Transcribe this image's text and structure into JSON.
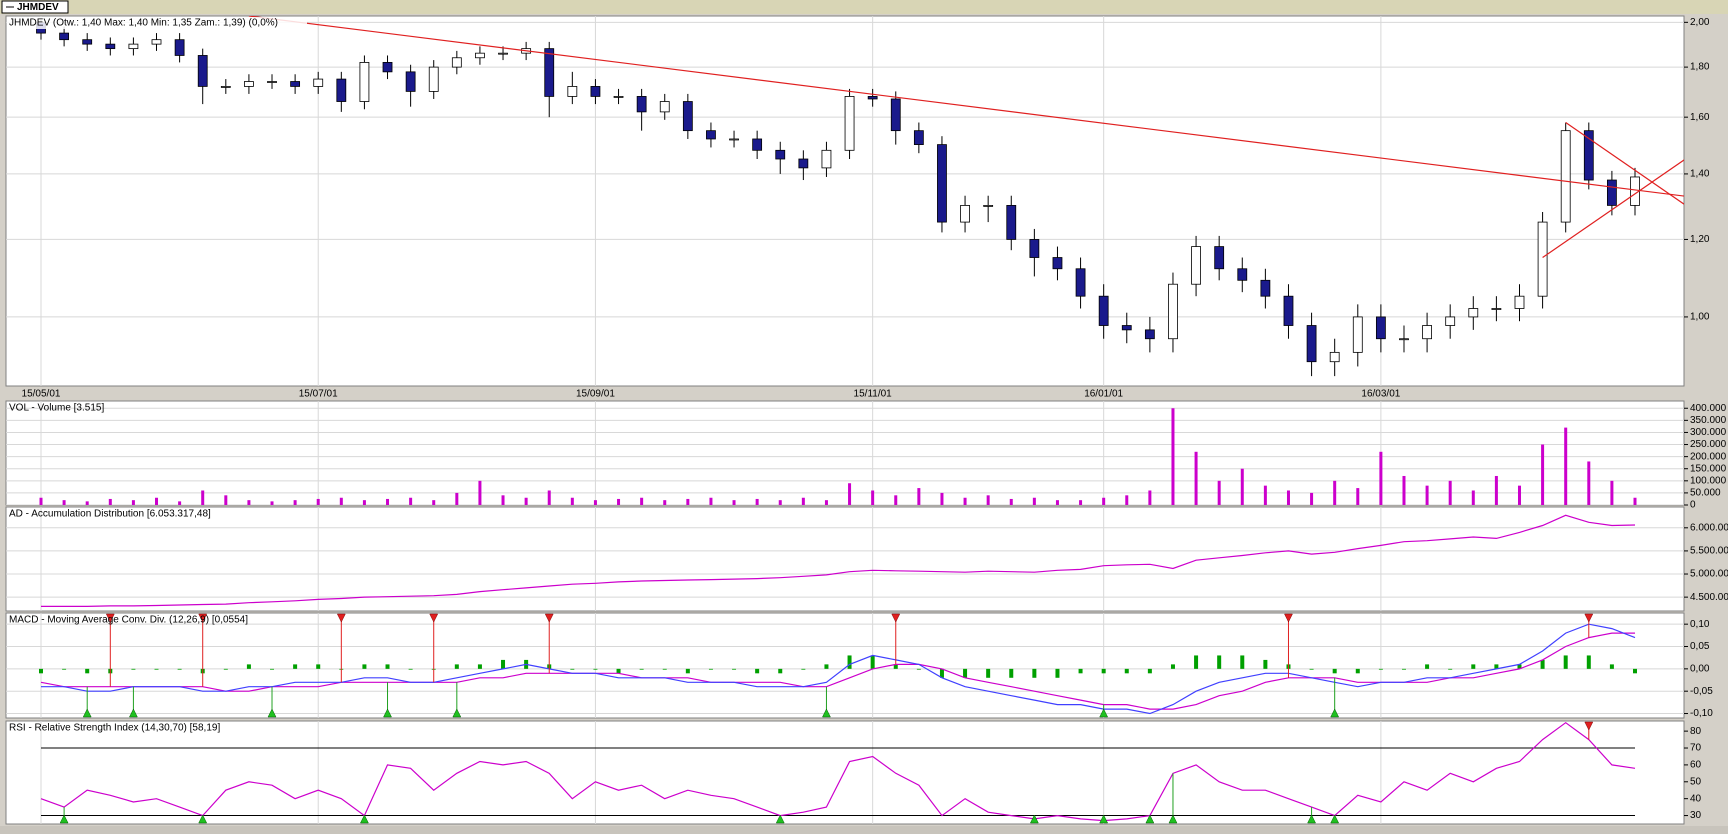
{
  "tab": "JHMDEV",
  "chart_data": [
    {
      "type": "candlestick",
      "title": "JHMDEV (Otw.: 1,40  Max: 1,40  Min: 1,35  Zam.: 1,39) (0,0%)",
      "log_scale": true,
      "grid": true,
      "up_color": "#ffffff",
      "down_color": "#1a1a8c",
      "ylim": [
        0.85,
        2.03
      ],
      "yticks": [
        {
          "value": 1.0,
          "label": "1,00"
        },
        {
          "value": 1.2,
          "label": "1,20"
        },
        {
          "value": 1.4,
          "label": "1,40"
        },
        {
          "value": 1.6,
          "label": "1,60"
        },
        {
          "value": 1.8,
          "label": "1,80"
        },
        {
          "value": 2.0,
          "label": "2,00"
        }
      ],
      "categories": [
        "15/05/01",
        null,
        null,
        null,
        null,
        null,
        null,
        null,
        null,
        null,
        null,
        null,
        "15/07/01",
        null,
        null,
        null,
        null,
        null,
        null,
        null,
        null,
        null,
        null,
        null,
        "15/09/01",
        null,
        null,
        null,
        null,
        null,
        null,
        null,
        null,
        null,
        null,
        null,
        "15/11/01",
        null,
        null,
        null,
        null,
        null,
        null,
        null,
        null,
        null,
        "16/01/01",
        null,
        null,
        null,
        null,
        null,
        null,
        null,
        null,
        null,
        null,
        null,
        "16/03/01",
        null,
        null,
        null,
        null,
        null,
        null,
        null,
        null,
        null,
        null,
        null
      ],
      "open": [
        2.0,
        1.95,
        1.92,
        1.9,
        1.88,
        1.9,
        1.92,
        1.85,
        1.72,
        1.72,
        1.74,
        1.74,
        1.72,
        1.75,
        1.66,
        1.82,
        1.78,
        1.7,
        1.8,
        1.84,
        1.86,
        1.86,
        1.88,
        1.68,
        1.72,
        1.68,
        1.68,
        1.62,
        1.66,
        1.55,
        1.52,
        1.52,
        1.48,
        1.45,
        1.42,
        1.48,
        1.68,
        1.67,
        1.55,
        1.5,
        1.25,
        1.3,
        1.3,
        1.2,
        1.15,
        1.12,
        1.05,
        0.98,
        0.97,
        0.95,
        1.08,
        1.18,
        1.12,
        1.09,
        1.05,
        0.98,
        0.9,
        0.92,
        1.0,
        0.95,
        0.95,
        0.98,
        1.0,
        1.02,
        1.02,
        1.05,
        1.25,
        1.55,
        1.38,
        1.3
      ],
      "high": [
        2.01,
        1.98,
        1.95,
        1.93,
        1.93,
        1.95,
        1.95,
        1.88,
        1.75,
        1.77,
        1.77,
        1.77,
        1.78,
        1.78,
        1.85,
        1.85,
        1.81,
        1.83,
        1.87,
        1.89,
        1.89,
        1.91,
        1.91,
        1.78,
        1.75,
        1.71,
        1.71,
        1.69,
        1.69,
        1.58,
        1.55,
        1.55,
        1.51,
        1.48,
        1.51,
        1.71,
        1.71,
        1.7,
        1.58,
        1.53,
        1.33,
        1.33,
        1.33,
        1.23,
        1.18,
        1.15,
        1.08,
        1.01,
        1.0,
        1.11,
        1.21,
        1.21,
        1.15,
        1.12,
        1.08,
        1.01,
        0.95,
        1.03,
        1.03,
        0.98,
        1.01,
        1.03,
        1.05,
        1.05,
        1.08,
        1.28,
        1.58,
        1.58,
        1.41,
        1.42
      ],
      "low": [
        1.92,
        1.89,
        1.87,
        1.85,
        1.85,
        1.87,
        1.82,
        1.65,
        1.69,
        1.69,
        1.71,
        1.69,
        1.69,
        1.62,
        1.63,
        1.75,
        1.64,
        1.67,
        1.77,
        1.81,
        1.83,
        1.83,
        1.6,
        1.65,
        1.65,
        1.65,
        1.55,
        1.59,
        1.52,
        1.49,
        1.49,
        1.45,
        1.4,
        1.38,
        1.39,
        1.45,
        1.64,
        1.5,
        1.47,
        1.22,
        1.22,
        1.25,
        1.17,
        1.1,
        1.09,
        1.02,
        0.95,
        0.94,
        0.92,
        0.92,
        1.05,
        1.09,
        1.06,
        1.02,
        0.95,
        0.87,
        0.87,
        0.89,
        0.92,
        0.92,
        0.92,
        0.95,
        0.97,
        0.99,
        0.99,
        1.02,
        1.22,
        1.35,
        1.27,
        1.27
      ],
      "close": [
        1.95,
        1.92,
        1.9,
        1.88,
        1.9,
        1.92,
        1.85,
        1.72,
        1.72,
        1.74,
        1.74,
        1.72,
        1.75,
        1.66,
        1.82,
        1.78,
        1.7,
        1.8,
        1.84,
        1.86,
        1.86,
        1.88,
        1.68,
        1.72,
        1.68,
        1.68,
        1.62,
        1.66,
        1.55,
        1.52,
        1.52,
        1.48,
        1.45,
        1.42,
        1.48,
        1.68,
        1.67,
        1.55,
        1.5,
        1.25,
        1.3,
        1.3,
        1.2,
        1.15,
        1.12,
        1.05,
        0.98,
        0.97,
        0.95,
        1.08,
        1.18,
        1.12,
        1.09,
        1.05,
        0.98,
        0.9,
        0.92,
        1.0,
        0.95,
        0.95,
        0.98,
        1.0,
        1.02,
        1.02,
        1.05,
        1.25,
        1.55,
        1.38,
        1.3,
        1.39
      ],
      "trendlines": [
        {
          "color": "#e02020",
          "x": [
            9,
            71
          ],
          "y": [
            2.03,
            1.33
          ]
        },
        {
          "color": "#e02020",
          "x": [
            66,
            71
          ],
          "y": [
            1.58,
            1.31
          ]
        },
        {
          "color": "#e02020",
          "x": [
            65,
            71
          ],
          "y": [
            1.15,
            1.44
          ]
        }
      ]
    },
    {
      "type": "bar",
      "title": "VOL - Volume [3.515]",
      "color": "#cc00cc",
      "grid": true,
      "ylim": [
        0,
        430000
      ],
      "yticks": [
        0,
        {
          "value": 50000,
          "label": "50.000"
        },
        {
          "value": 100000,
          "label": "100.000"
        },
        {
          "value": 150000,
          "label": "150.000"
        },
        {
          "value": 200000,
          "label": "200.000"
        },
        {
          "value": 250000,
          "label": "250.000"
        },
        {
          "value": 300000,
          "label": "300.000"
        },
        {
          "value": 350000,
          "label": "350.000"
        },
        {
          "value": 400000,
          "label": "400.000"
        }
      ],
      "values": [
        30000,
        20000,
        15000,
        25000,
        20000,
        30000,
        15000,
        60000,
        40000,
        20000,
        15000,
        20000,
        25000,
        30000,
        20000,
        25000,
        30000,
        20000,
        50000,
        100000,
        40000,
        30000,
        60000,
        30000,
        20000,
        25000,
        30000,
        20000,
        25000,
        30000,
        20000,
        25000,
        20000,
        30000,
        20000,
        90000,
        60000,
        40000,
        70000,
        50000,
        30000,
        40000,
        25000,
        30000,
        20000,
        20000,
        30000,
        40000,
        60000,
        400000,
        220000,
        100000,
        150000,
        80000,
        60000,
        50000,
        100000,
        70000,
        220000,
        120000,
        80000,
        100000,
        60000,
        120000,
        80000,
        250000,
        320000,
        180000,
        100000,
        30000
      ]
    },
    {
      "type": "line",
      "title": "AD - Accumulation Distribution [6.053.317,48]",
      "grid": true,
      "ylim": [
        4200000,
        6450000
      ],
      "yticks": [
        {
          "value": 4500000,
          "label": "4.500.000"
        },
        {
          "value": 5000000,
          "label": "5.000.000"
        },
        {
          "value": 5500000,
          "label": "5.500.000"
        },
        {
          "value": 6000000,
          "label": "6.000.000"
        }
      ],
      "series": [
        {
          "color": "#cc00cc",
          "values": [
            4300000,
            4300000,
            4300000,
            4310000,
            4310000,
            4320000,
            4330000,
            4340000,
            4350000,
            4380000,
            4400000,
            4420000,
            4450000,
            4470000,
            4500000,
            4510000,
            4520000,
            4530000,
            4560000,
            4620000,
            4660000,
            4700000,
            4740000,
            4780000,
            4800000,
            4830000,
            4850000,
            4860000,
            4870000,
            4880000,
            4890000,
            4900000,
            4920000,
            4950000,
            4980000,
            5050000,
            5080000,
            5070000,
            5060000,
            5050000,
            5040000,
            5060000,
            5050000,
            5040000,
            5080000,
            5100000,
            5180000,
            5200000,
            5210000,
            5120000,
            5300000,
            5350000,
            5400000,
            5460000,
            5500000,
            5430000,
            5470000,
            5550000,
            5620000,
            5700000,
            5720000,
            5760000,
            5800000,
            5770000,
            5900000,
            6050000,
            6270000,
            6120000,
            6050000,
            6060000
          ]
        }
      ]
    },
    {
      "type": "line",
      "title": "MACD - Moving Average Conv. Div. (12,26,9) [0,0554]",
      "grid": true,
      "ylim": [
        -0.11,
        0.125
      ],
      "yticks": [
        {
          "value": -0.1,
          "label": "-0,10"
        },
        {
          "value": -0.05,
          "label": "-0,05"
        },
        {
          "value": 0,
          "label": "0,00"
        },
        {
          "value": 0.05,
          "label": "0,05"
        },
        {
          "value": 0.1,
          "label": "0,10"
        }
      ],
      "series": [
        {
          "style": "line",
          "color": "#cc00cc",
          "values": [
            -0.03,
            -0.04,
            -0.04,
            -0.04,
            -0.04,
            -0.04,
            -0.04,
            -0.04,
            -0.05,
            -0.05,
            -0.04,
            -0.04,
            -0.04,
            -0.03,
            -0.03,
            -0.03,
            -0.03,
            -0.03,
            -0.03,
            -0.02,
            -0.02,
            -0.01,
            -0.01,
            -0.01,
            -0.01,
            -0.01,
            -0.02,
            -0.02,
            -0.02,
            -0.03,
            -0.03,
            -0.03,
            -0.03,
            -0.04,
            -0.04,
            -0.02,
            0.0,
            0.01,
            0.01,
            0.0,
            -0.02,
            -0.03,
            -0.04,
            -0.05,
            -0.06,
            -0.07,
            -0.08,
            -0.08,
            -0.09,
            -0.09,
            -0.08,
            -0.06,
            -0.05,
            -0.03,
            -0.02,
            -0.02,
            -0.02,
            -0.03,
            -0.03,
            -0.03,
            -0.03,
            -0.02,
            -0.02,
            -0.01,
            0.0,
            0.02,
            0.05,
            0.07,
            0.08,
            0.08
          ]
        },
        {
          "style": "line",
          "color": "#4040ff",
          "values": [
            -0.04,
            -0.04,
            -0.05,
            -0.05,
            -0.04,
            -0.04,
            -0.04,
            -0.05,
            -0.05,
            -0.04,
            -0.04,
            -0.03,
            -0.03,
            -0.03,
            -0.02,
            -0.02,
            -0.03,
            -0.03,
            -0.02,
            -0.01,
            0.0,
            0.01,
            0.0,
            -0.01,
            -0.01,
            -0.02,
            -0.02,
            -0.02,
            -0.03,
            -0.03,
            -0.03,
            -0.04,
            -0.04,
            -0.04,
            -0.03,
            0.01,
            0.03,
            0.02,
            0.01,
            -0.02,
            -0.04,
            -0.05,
            -0.06,
            -0.07,
            -0.08,
            -0.08,
            -0.09,
            -0.09,
            -0.1,
            -0.08,
            -0.05,
            -0.03,
            -0.02,
            -0.01,
            -0.01,
            -0.02,
            -0.03,
            -0.04,
            -0.03,
            -0.03,
            -0.02,
            -0.02,
            -0.01,
            0.0,
            0.01,
            0.04,
            0.08,
            0.1,
            0.09,
            0.07
          ]
        },
        {
          "style": "bar",
          "color": "#00a000",
          "values": [
            -0.01,
            0.0,
            -0.01,
            -0.01,
            0.0,
            0.0,
            0.0,
            -0.01,
            0.0,
            0.01,
            0.0,
            0.01,
            0.01,
            0.0,
            0.01,
            0.01,
            0.0,
            0.0,
            0.01,
            0.01,
            0.02,
            0.02,
            0.01,
            0.0,
            0.0,
            -0.01,
            0.0,
            0.0,
            -0.01,
            0.0,
            0.0,
            -0.01,
            -0.01,
            0.0,
            0.01,
            0.03,
            0.03,
            0.01,
            0.0,
            -0.02,
            -0.02,
            -0.02,
            -0.02,
            -0.02,
            -0.02,
            -0.01,
            -0.01,
            -0.01,
            -0.01,
            0.01,
            0.03,
            0.03,
            0.03,
            0.02,
            0.01,
            0.0,
            -0.01,
            -0.01,
            0.0,
            0.0,
            0.01,
            0.0,
            0.01,
            0.01,
            0.01,
            0.02,
            0.03,
            0.03,
            0.01,
            -0.01
          ]
        }
      ],
      "sell_signals": [
        3,
        7,
        13,
        17,
        22,
        37,
        54,
        67
      ],
      "buy_signals": [
        2,
        4,
        10,
        15,
        18,
        34,
        46,
        56
      ]
    },
    {
      "type": "line",
      "title": "RSI - Relative Strength Index (14,30,70) [58,19]",
      "grid": false,
      "ylim": [
        25,
        86
      ],
      "yticks": [
        30,
        40,
        50,
        60,
        70,
        80
      ],
      "thresholds": [
        30,
        70
      ],
      "series": [
        {
          "style": "line",
          "color": "#cc00cc",
          "values": [
            40,
            35,
            45,
            42,
            38,
            40,
            35,
            30,
            45,
            50,
            48,
            40,
            45,
            40,
            30,
            60,
            58,
            45,
            55,
            62,
            60,
            62,
            55,
            40,
            50,
            45,
            48,
            40,
            45,
            42,
            40,
            35,
            30,
            32,
            35,
            62,
            65,
            55,
            48,
            30,
            40,
            32,
            30,
            28,
            30,
            28,
            27,
            28,
            30,
            55,
            60,
            50,
            45,
            45,
            40,
            35,
            30,
            42,
            38,
            50,
            45,
            55,
            50,
            58,
            62,
            75,
            85,
            75,
            60,
            58
          ]
        }
      ],
      "sell_signals": [
        67
      ],
      "buy_signals": [
        1,
        7,
        14,
        32,
        43,
        46,
        48,
        49,
        55,
        56
      ]
    }
  ]
}
